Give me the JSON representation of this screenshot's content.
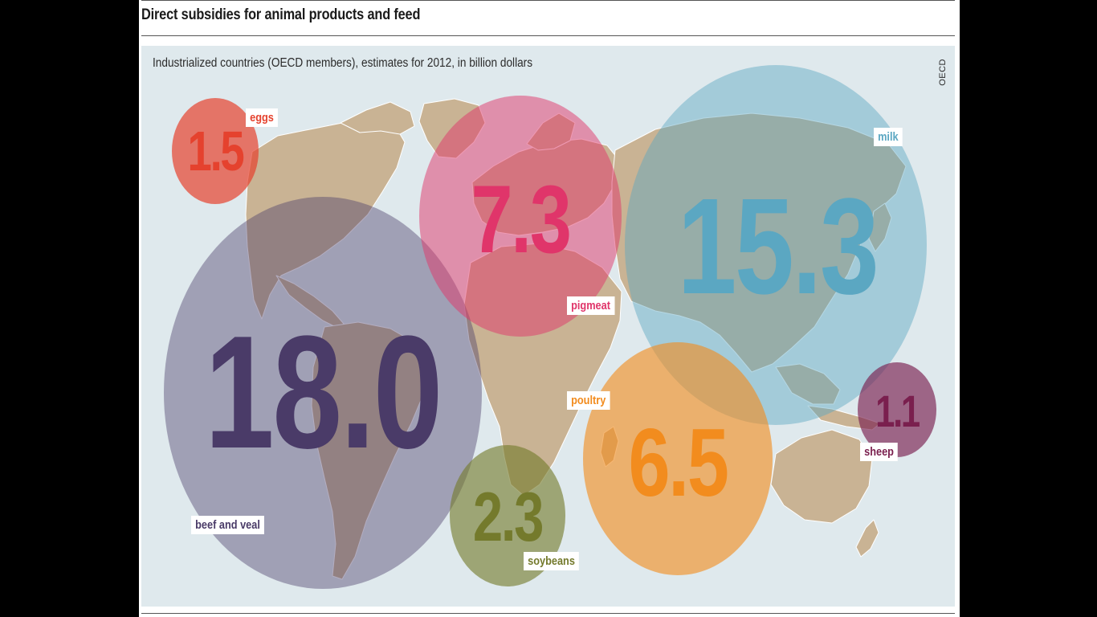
{
  "title": "Direct subsidies for animal products and feed",
  "subtitle": "Industrialized countries (OECD members), estimates for 2012, in billion dollars",
  "source": "OECD",
  "chart_data": {
    "type": "bubble",
    "unit": "billion dollars",
    "series": [
      {
        "name": "beef and veal",
        "value": 18.0,
        "display": "18.0",
        "color": "#4a3b68"
      },
      {
        "name": "milk",
        "value": 15.3,
        "display": "15.3",
        "color": "#5ba7c2"
      },
      {
        "name": "pigmeat",
        "value": 7.3,
        "display": "7.3",
        "color": "#e0356a"
      },
      {
        "name": "poultry",
        "value": 6.5,
        "display": "6.5",
        "color": "#f28c1e"
      },
      {
        "name": "soybeans",
        "value": 2.3,
        "display": "2.3",
        "color": "#747a2c"
      },
      {
        "name": "eggs",
        "value": 1.5,
        "display": "1.5",
        "color": "#e5422e"
      },
      {
        "name": "sheep",
        "value": 1.1,
        "display": "1.1",
        "color": "#7a1f4e"
      }
    ]
  }
}
